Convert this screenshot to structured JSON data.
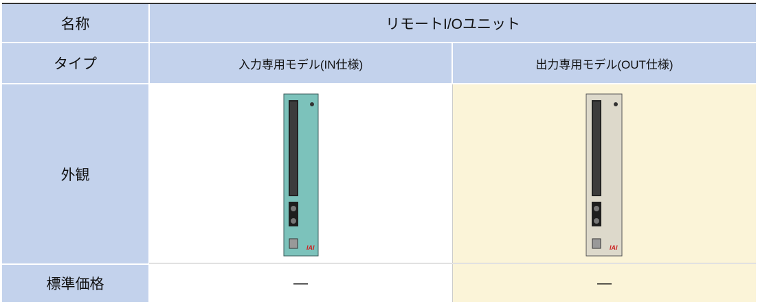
{
  "table": {
    "rows": [
      [
        "名称",
        "リモートI/Oユニット"
      ],
      [
        "タイプ",
        "入力専用モデル(IN仕様)",
        "出力専用モデル(OUT仕様)"
      ],
      [
        "外観"
      ],
      [
        "標準価格",
        "—",
        "—"
      ]
    ],
    "logo": "IAI"
  }
}
